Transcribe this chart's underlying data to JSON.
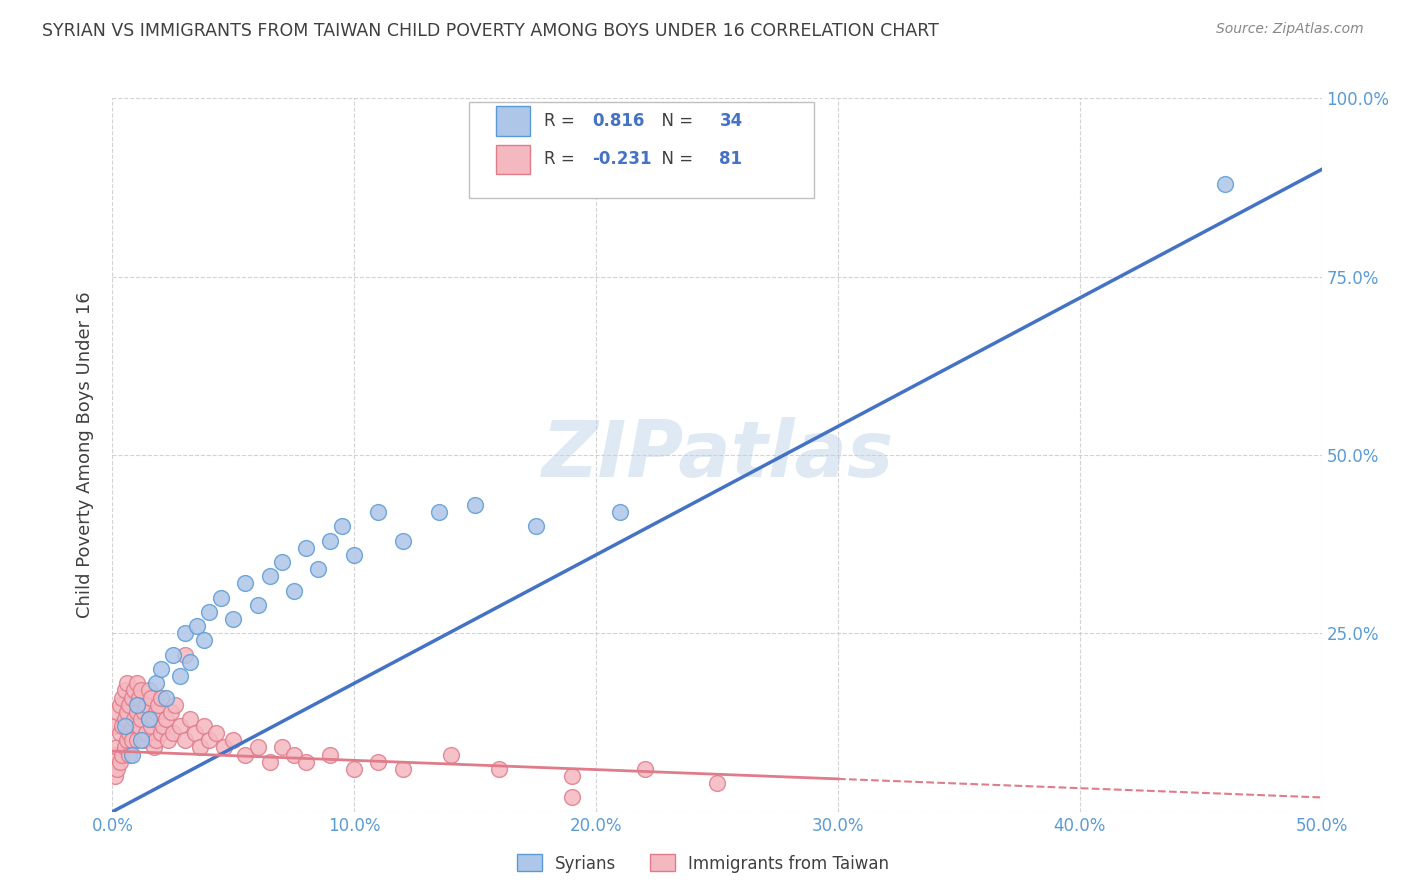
{
  "title": "SYRIAN VS IMMIGRANTS FROM TAIWAN CHILD POVERTY AMONG BOYS UNDER 16 CORRELATION CHART",
  "source": "Source: ZipAtlas.com",
  "ylabel_label": "Child Poverty Among Boys Under 16",
  "watermark": "ZIPatlas",
  "xmin": 0.0,
  "xmax": 0.5,
  "ymin": 0.0,
  "ymax": 1.0,
  "xtick_vals": [
    0.0,
    0.1,
    0.2,
    0.3,
    0.4,
    0.5
  ],
  "xtick_labels": [
    "0.0%",
    "10.0%",
    "20.0%",
    "30.0%",
    "40.0%",
    "50.0%"
  ],
  "ytick_vals": [
    0.0,
    0.25,
    0.5,
    0.75,
    1.0
  ],
  "ytick_labels": [
    "",
    "25.0%",
    "50.0%",
    "75.0%",
    "100.0%"
  ],
  "color1_fill": "#aec6e8",
  "color1_edge": "#5b9bd5",
  "color1_line": "#4472c4",
  "color2_fill": "#f4b8c1",
  "color2_edge": "#e07b8a",
  "color2_line": "#e07b8a",
  "r1": 0.816,
  "n1": 34,
  "r2": -0.231,
  "n2": 81,
  "trend1_x0": 0.0,
  "trend1_y0": 0.0,
  "trend1_x1": 0.5,
  "trend1_y1": 0.9,
  "trend2_x0": 0.0,
  "trend2_y0": 0.085,
  "trend2_x1": 0.5,
  "trend2_y1": 0.02,
  "trend2_solid_end": 0.3,
  "background_color": "#ffffff",
  "grid_color": "#c8c8c8",
  "title_color": "#404040",
  "tick_color": "#5b9bd5",
  "syrians_x": [
    0.005,
    0.008,
    0.01,
    0.012,
    0.015,
    0.018,
    0.02,
    0.022,
    0.025,
    0.028,
    0.03,
    0.032,
    0.035,
    0.038,
    0.04,
    0.045,
    0.05,
    0.055,
    0.06,
    0.065,
    0.07,
    0.075,
    0.08,
    0.085,
    0.09,
    0.095,
    0.1,
    0.11,
    0.12,
    0.135,
    0.15,
    0.175,
    0.21,
    0.46
  ],
  "syrians_y": [
    0.12,
    0.08,
    0.15,
    0.1,
    0.13,
    0.18,
    0.2,
    0.16,
    0.22,
    0.19,
    0.25,
    0.21,
    0.26,
    0.24,
    0.28,
    0.3,
    0.27,
    0.32,
    0.29,
    0.33,
    0.35,
    0.31,
    0.37,
    0.34,
    0.38,
    0.4,
    0.36,
    0.42,
    0.38,
    0.42,
    0.43,
    0.4,
    0.42,
    0.88
  ],
  "taiwan_x": [
    0.001,
    0.001,
    0.001,
    0.002,
    0.002,
    0.002,
    0.003,
    0.003,
    0.003,
    0.004,
    0.004,
    0.004,
    0.005,
    0.005,
    0.005,
    0.006,
    0.006,
    0.006,
    0.007,
    0.007,
    0.007,
    0.008,
    0.008,
    0.008,
    0.009,
    0.009,
    0.01,
    0.01,
    0.01,
    0.011,
    0.011,
    0.012,
    0.012,
    0.013,
    0.013,
    0.014,
    0.014,
    0.015,
    0.015,
    0.016,
    0.016,
    0.017,
    0.017,
    0.018,
    0.018,
    0.019,
    0.02,
    0.02,
    0.021,
    0.022,
    0.023,
    0.024,
    0.025,
    0.026,
    0.028,
    0.03,
    0.032,
    0.034,
    0.036,
    0.038,
    0.04,
    0.043,
    0.046,
    0.05,
    0.055,
    0.06,
    0.065,
    0.07,
    0.075,
    0.08,
    0.09,
    0.1,
    0.11,
    0.12,
    0.14,
    0.16,
    0.19,
    0.22,
    0.25,
    0.19,
    0.03
  ],
  "taiwan_y": [
    0.05,
    0.08,
    0.12,
    0.06,
    0.09,
    0.14,
    0.07,
    0.11,
    0.15,
    0.08,
    0.12,
    0.16,
    0.09,
    0.13,
    0.17,
    0.1,
    0.14,
    0.18,
    0.11,
    0.15,
    0.08,
    0.12,
    0.16,
    0.1,
    0.13,
    0.17,
    0.14,
    0.1,
    0.18,
    0.12,
    0.16,
    0.13,
    0.17,
    0.14,
    0.1,
    0.15,
    0.11,
    0.13,
    0.17,
    0.12,
    0.16,
    0.13,
    0.09,
    0.14,
    0.1,
    0.15,
    0.11,
    0.16,
    0.12,
    0.13,
    0.1,
    0.14,
    0.11,
    0.15,
    0.12,
    0.1,
    0.13,
    0.11,
    0.09,
    0.12,
    0.1,
    0.11,
    0.09,
    0.1,
    0.08,
    0.09,
    0.07,
    0.09,
    0.08,
    0.07,
    0.08,
    0.06,
    0.07,
    0.06,
    0.08,
    0.06,
    0.05,
    0.06,
    0.04,
    0.02,
    0.22
  ]
}
